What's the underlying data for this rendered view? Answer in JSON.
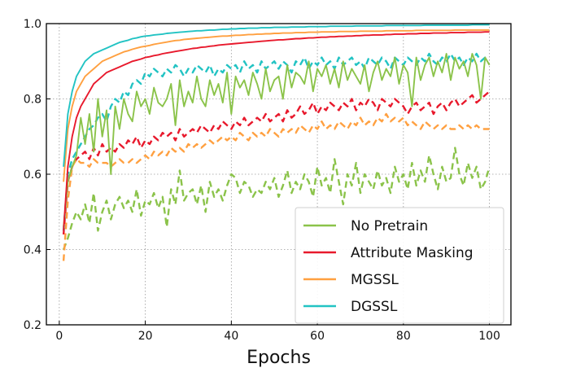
{
  "chart_data": {
    "type": "line",
    "title": "",
    "xlabel": "Epochs",
    "ylabel": "",
    "xlim": [
      -3,
      105
    ],
    "ylim": [
      0.2,
      1.0
    ],
    "xticks": [
      0,
      20,
      40,
      60,
      80,
      100
    ],
    "yticks": [
      0.2,
      0.4,
      0.6,
      0.8,
      1.0
    ],
    "xtick_labels": [
      "0",
      "20",
      "40",
      "60",
      "80",
      "100"
    ],
    "ytick_labels": [
      "0.2",
      "0.4",
      "0.6",
      "0.8",
      "1.0"
    ],
    "grid": true,
    "grid_style": "dotted",
    "legend_position": "lower-right",
    "x": [
      1,
      2,
      3,
      4,
      5,
      6,
      7,
      8,
      9,
      10,
      11,
      12,
      13,
      14,
      15,
      16,
      17,
      18,
      19,
      20,
      21,
      22,
      23,
      24,
      25,
      26,
      27,
      28,
      29,
      30,
      31,
      32,
      33,
      34,
      35,
      36,
      37,
      38,
      39,
      40,
      41,
      42,
      43,
      44,
      45,
      46,
      47,
      48,
      49,
      50,
      51,
      52,
      53,
      54,
      55,
      56,
      57,
      58,
      59,
      60,
      61,
      62,
      63,
      64,
      65,
      66,
      67,
      68,
      69,
      70,
      71,
      72,
      73,
      74,
      75,
      76,
      77,
      78,
      79,
      80,
      81,
      82,
      83,
      84,
      85,
      86,
      87,
      88,
      89,
      90,
      91,
      92,
      93,
      94,
      95,
      96,
      97,
      98,
      99,
      100
    ],
    "series": [
      {
        "name": "No Pretrain",
        "color": "#8bc34a",
        "style": "solid",
        "values": [
          0.46,
          0.58,
          0.62,
          0.65,
          0.75,
          0.68,
          0.76,
          0.66,
          0.8,
          0.7,
          0.77,
          0.6,
          0.78,
          0.72,
          0.8,
          0.76,
          0.74,
          0.82,
          0.78,
          0.8,
          0.76,
          0.83,
          0.79,
          0.78,
          0.8,
          0.84,
          0.73,
          0.85,
          0.78,
          0.82,
          0.79,
          0.86,
          0.8,
          0.78,
          0.85,
          0.81,
          0.84,
          0.79,
          0.87,
          0.76,
          0.86,
          0.83,
          0.85,
          0.81,
          0.87,
          0.84,
          0.8,
          0.88,
          0.82,
          0.85,
          0.86,
          0.8,
          0.89,
          0.83,
          0.87,
          0.86,
          0.84,
          0.9,
          0.82,
          0.88,
          0.86,
          0.89,
          0.84,
          0.88,
          0.83,
          0.9,
          0.85,
          0.88,
          0.86,
          0.84,
          0.89,
          0.82,
          0.87,
          0.9,
          0.85,
          0.88,
          0.86,
          0.91,
          0.84,
          0.89,
          0.87,
          0.78,
          0.91,
          0.85,
          0.89,
          0.91,
          0.86,
          0.9,
          0.87,
          0.92,
          0.85,
          0.91,
          0.88,
          0.9,
          0.86,
          0.92,
          0.89,
          0.8,
          0.91,
          0.89
        ]
      },
      {
        "name": "Attribute Masking",
        "color": "#e8192c",
        "style": "solid",
        "values": [
          0.45,
          0.62,
          0.7,
          0.75,
          0.78,
          0.8,
          0.82,
          0.84,
          0.85,
          0.86,
          0.87,
          0.875,
          0.88,
          0.885,
          0.89,
          0.895,
          0.9,
          0.903,
          0.906,
          0.91,
          0.912,
          0.915,
          0.917,
          0.92,
          0.922,
          0.924,
          0.926,
          0.928,
          0.93,
          0.932,
          0.934,
          0.935,
          0.937,
          0.938,
          0.94,
          0.941,
          0.943,
          0.944,
          0.945,
          0.946,
          0.947,
          0.948,
          0.949,
          0.95,
          0.951,
          0.952,
          0.953,
          0.954,
          0.955,
          0.956,
          0.957,
          0.957,
          0.958,
          0.959,
          0.96,
          0.96,
          0.961,
          0.962,
          0.962,
          0.963,
          0.964,
          0.964,
          0.965,
          0.965,
          0.966,
          0.966,
          0.967,
          0.967,
          0.968,
          0.968,
          0.969,
          0.969,
          0.97,
          0.97,
          0.97,
          0.971,
          0.971,
          0.972,
          0.972,
          0.972,
          0.973,
          0.973,
          0.973,
          0.974,
          0.974,
          0.974,
          0.975,
          0.975,
          0.975,
          0.975,
          0.976,
          0.976,
          0.976,
          0.976,
          0.977,
          0.977,
          0.977,
          0.977,
          0.978,
          0.978
        ]
      },
      {
        "name": "MGSSL",
        "color": "#ffa040",
        "style": "solid",
        "values": [
          0.58,
          0.72,
          0.78,
          0.82,
          0.84,
          0.86,
          0.87,
          0.88,
          0.89,
          0.9,
          0.905,
          0.91,
          0.915,
          0.92,
          0.925,
          0.928,
          0.932,
          0.935,
          0.938,
          0.94,
          0.942,
          0.945,
          0.947,
          0.949,
          0.951,
          0.953,
          0.955,
          0.956,
          0.958,
          0.959,
          0.96,
          0.961,
          0.962,
          0.963,
          0.964,
          0.965,
          0.966,
          0.967,
          0.967,
          0.968,
          0.969,
          0.969,
          0.97,
          0.971,
          0.971,
          0.972,
          0.972,
          0.973,
          0.973,
          0.974,
          0.974,
          0.975,
          0.975,
          0.975,
          0.976,
          0.976,
          0.976,
          0.977,
          0.977,
          0.977,
          0.978,
          0.978,
          0.978,
          0.978,
          0.979,
          0.979,
          0.979,
          0.979,
          0.979,
          0.98,
          0.98,
          0.98,
          0.98,
          0.98,
          0.98,
          0.981,
          0.981,
          0.981,
          0.981,
          0.981,
          0.981,
          0.981,
          0.982,
          0.982,
          0.982,
          0.982,
          0.982,
          0.982,
          0.982,
          0.982,
          0.982,
          0.983,
          0.983,
          0.983,
          0.983,
          0.983,
          0.983,
          0.983,
          0.983,
          0.983
        ]
      },
      {
        "name": "DGSSL",
        "color": "#22c3c3",
        "style": "solid",
        "values": [
          0.62,
          0.76,
          0.82,
          0.86,
          0.88,
          0.9,
          0.91,
          0.92,
          0.925,
          0.93,
          0.935,
          0.94,
          0.945,
          0.95,
          0.953,
          0.956,
          0.96,
          0.962,
          0.965,
          0.967,
          0.968,
          0.97,
          0.971,
          0.972,
          0.974,
          0.975,
          0.976,
          0.977,
          0.978,
          0.979,
          0.98,
          0.981,
          0.981,
          0.982,
          0.983,
          0.983,
          0.984,
          0.985,
          0.985,
          0.986,
          0.986,
          0.987,
          0.987,
          0.988,
          0.988,
          0.988,
          0.989,
          0.989,
          0.989,
          0.99,
          0.99,
          0.99,
          0.99,
          0.991,
          0.991,
          0.991,
          0.991,
          0.992,
          0.992,
          0.992,
          0.992,
          0.992,
          0.993,
          0.993,
          0.993,
          0.993,
          0.993,
          0.993,
          0.994,
          0.994,
          0.994,
          0.994,
          0.994,
          0.994,
          0.994,
          0.995,
          0.995,
          0.995,
          0.995,
          0.995,
          0.995,
          0.995,
          0.995,
          0.995,
          0.996,
          0.996,
          0.996,
          0.996,
          0.996,
          0.996,
          0.996,
          0.996,
          0.996,
          0.996,
          0.996,
          0.997,
          0.997,
          0.997,
          0.997,
          0.997
        ]
      },
      {
        "name": "",
        "color": "#8bc34a",
        "style": "dashed",
        "values": [
          0.4,
          0.43,
          0.47,
          0.5,
          0.48,
          0.52,
          0.47,
          0.55,
          0.45,
          0.5,
          0.53,
          0.48,
          0.52,
          0.54,
          0.51,
          0.53,
          0.5,
          0.56,
          0.49,
          0.53,
          0.52,
          0.55,
          0.51,
          0.54,
          0.46,
          0.56,
          0.52,
          0.61,
          0.53,
          0.55,
          0.56,
          0.52,
          0.57,
          0.5,
          0.58,
          0.54,
          0.56,
          0.53,
          0.57,
          0.6,
          0.59,
          0.55,
          0.58,
          0.57,
          0.54,
          0.56,
          0.55,
          0.58,
          0.56,
          0.59,
          0.54,
          0.57,
          0.61,
          0.55,
          0.58,
          0.56,
          0.6,
          0.58,
          0.54,
          0.62,
          0.57,
          0.59,
          0.55,
          0.64,
          0.58,
          0.52,
          0.6,
          0.57,
          0.63,
          0.55,
          0.6,
          0.58,
          0.56,
          0.61,
          0.57,
          0.59,
          0.55,
          0.62,
          0.58,
          0.6,
          0.56,
          0.63,
          0.57,
          0.61,
          0.58,
          0.65,
          0.6,
          0.56,
          0.62,
          0.58,
          0.59,
          0.67,
          0.6,
          0.57,
          0.63,
          0.59,
          0.62,
          0.56,
          0.58,
          0.62
        ]
      },
      {
        "name": "",
        "color": "#e8192c",
        "style": "dashed",
        "values": [
          0.44,
          0.58,
          0.62,
          0.64,
          0.65,
          0.66,
          0.64,
          0.67,
          0.65,
          0.68,
          0.66,
          0.67,
          0.66,
          0.68,
          0.67,
          0.69,
          0.68,
          0.7,
          0.67,
          0.69,
          0.68,
          0.7,
          0.69,
          0.71,
          0.7,
          0.71,
          0.69,
          0.72,
          0.7,
          0.71,
          0.72,
          0.71,
          0.73,
          0.72,
          0.71,
          0.73,
          0.72,
          0.74,
          0.73,
          0.72,
          0.74,
          0.73,
          0.75,
          0.73,
          0.74,
          0.75,
          0.74,
          0.76,
          0.74,
          0.75,
          0.76,
          0.74,
          0.77,
          0.75,
          0.76,
          0.78,
          0.76,
          0.77,
          0.79,
          0.76,
          0.78,
          0.77,
          0.79,
          0.78,
          0.77,
          0.79,
          0.78,
          0.8,
          0.77,
          0.79,
          0.78,
          0.8,
          0.79,
          0.77,
          0.8,
          0.79,
          0.78,
          0.8,
          0.79,
          0.78,
          0.76,
          0.78,
          0.79,
          0.77,
          0.78,
          0.79,
          0.76,
          0.78,
          0.79,
          0.77,
          0.79,
          0.8,
          0.78,
          0.79,
          0.8,
          0.81,
          0.79,
          0.8,
          0.81,
          0.82
        ]
      },
      {
        "name": "",
        "color": "#ffa040",
        "style": "dashed",
        "values": [
          0.37,
          0.53,
          0.62,
          0.64,
          0.63,
          0.63,
          0.62,
          0.64,
          0.63,
          0.63,
          0.63,
          0.62,
          0.63,
          0.64,
          0.63,
          0.63,
          0.64,
          0.63,
          0.64,
          0.65,
          0.64,
          0.66,
          0.65,
          0.66,
          0.65,
          0.67,
          0.66,
          0.67,
          0.66,
          0.68,
          0.67,
          0.68,
          0.67,
          0.68,
          0.69,
          0.68,
          0.69,
          0.7,
          0.69,
          0.7,
          0.69,
          0.71,
          0.7,
          0.69,
          0.71,
          0.7,
          0.71,
          0.7,
          0.72,
          0.71,
          0.7,
          0.72,
          0.71,
          0.72,
          0.71,
          0.73,
          0.72,
          0.71,
          0.73,
          0.72,
          0.74,
          0.72,
          0.73,
          0.72,
          0.74,
          0.73,
          0.72,
          0.74,
          0.73,
          0.75,
          0.73,
          0.74,
          0.73,
          0.75,
          0.74,
          0.76,
          0.74,
          0.75,
          0.74,
          0.75,
          0.73,
          0.74,
          0.73,
          0.72,
          0.74,
          0.73,
          0.72,
          0.73,
          0.72,
          0.73,
          0.72,
          0.72,
          0.73,
          0.72,
          0.73,
          0.72,
          0.73,
          0.72,
          0.72,
          0.72
        ]
      },
      {
        "name": "",
        "color": "#22c3c3",
        "style": "dashed",
        "values": [
          0.45,
          0.6,
          0.64,
          0.66,
          0.68,
          0.7,
          0.72,
          0.73,
          0.75,
          0.76,
          0.74,
          0.78,
          0.8,
          0.79,
          0.82,
          0.81,
          0.84,
          0.85,
          0.84,
          0.87,
          0.86,
          0.88,
          0.87,
          0.86,
          0.88,
          0.87,
          0.89,
          0.88,
          0.86,
          0.88,
          0.87,
          0.89,
          0.88,
          0.87,
          0.89,
          0.86,
          0.88,
          0.87,
          0.89,
          0.88,
          0.89,
          0.87,
          0.9,
          0.88,
          0.89,
          0.87,
          0.9,
          0.88,
          0.89,
          0.9,
          0.88,
          0.9,
          0.89,
          0.87,
          0.9,
          0.89,
          0.91,
          0.88,
          0.9,
          0.89,
          0.91,
          0.89,
          0.9,
          0.88,
          0.91,
          0.89,
          0.9,
          0.91,
          0.89,
          0.9,
          0.88,
          0.91,
          0.9,
          0.89,
          0.91,
          0.9,
          0.88,
          0.91,
          0.9,
          0.89,
          0.91,
          0.9,
          0.89,
          0.91,
          0.9,
          0.92,
          0.9,
          0.89,
          0.91,
          0.9,
          0.92,
          0.9,
          0.91,
          0.89,
          0.91,
          0.9,
          0.92,
          0.9,
          0.91,
          0.91
        ]
      }
    ]
  }
}
